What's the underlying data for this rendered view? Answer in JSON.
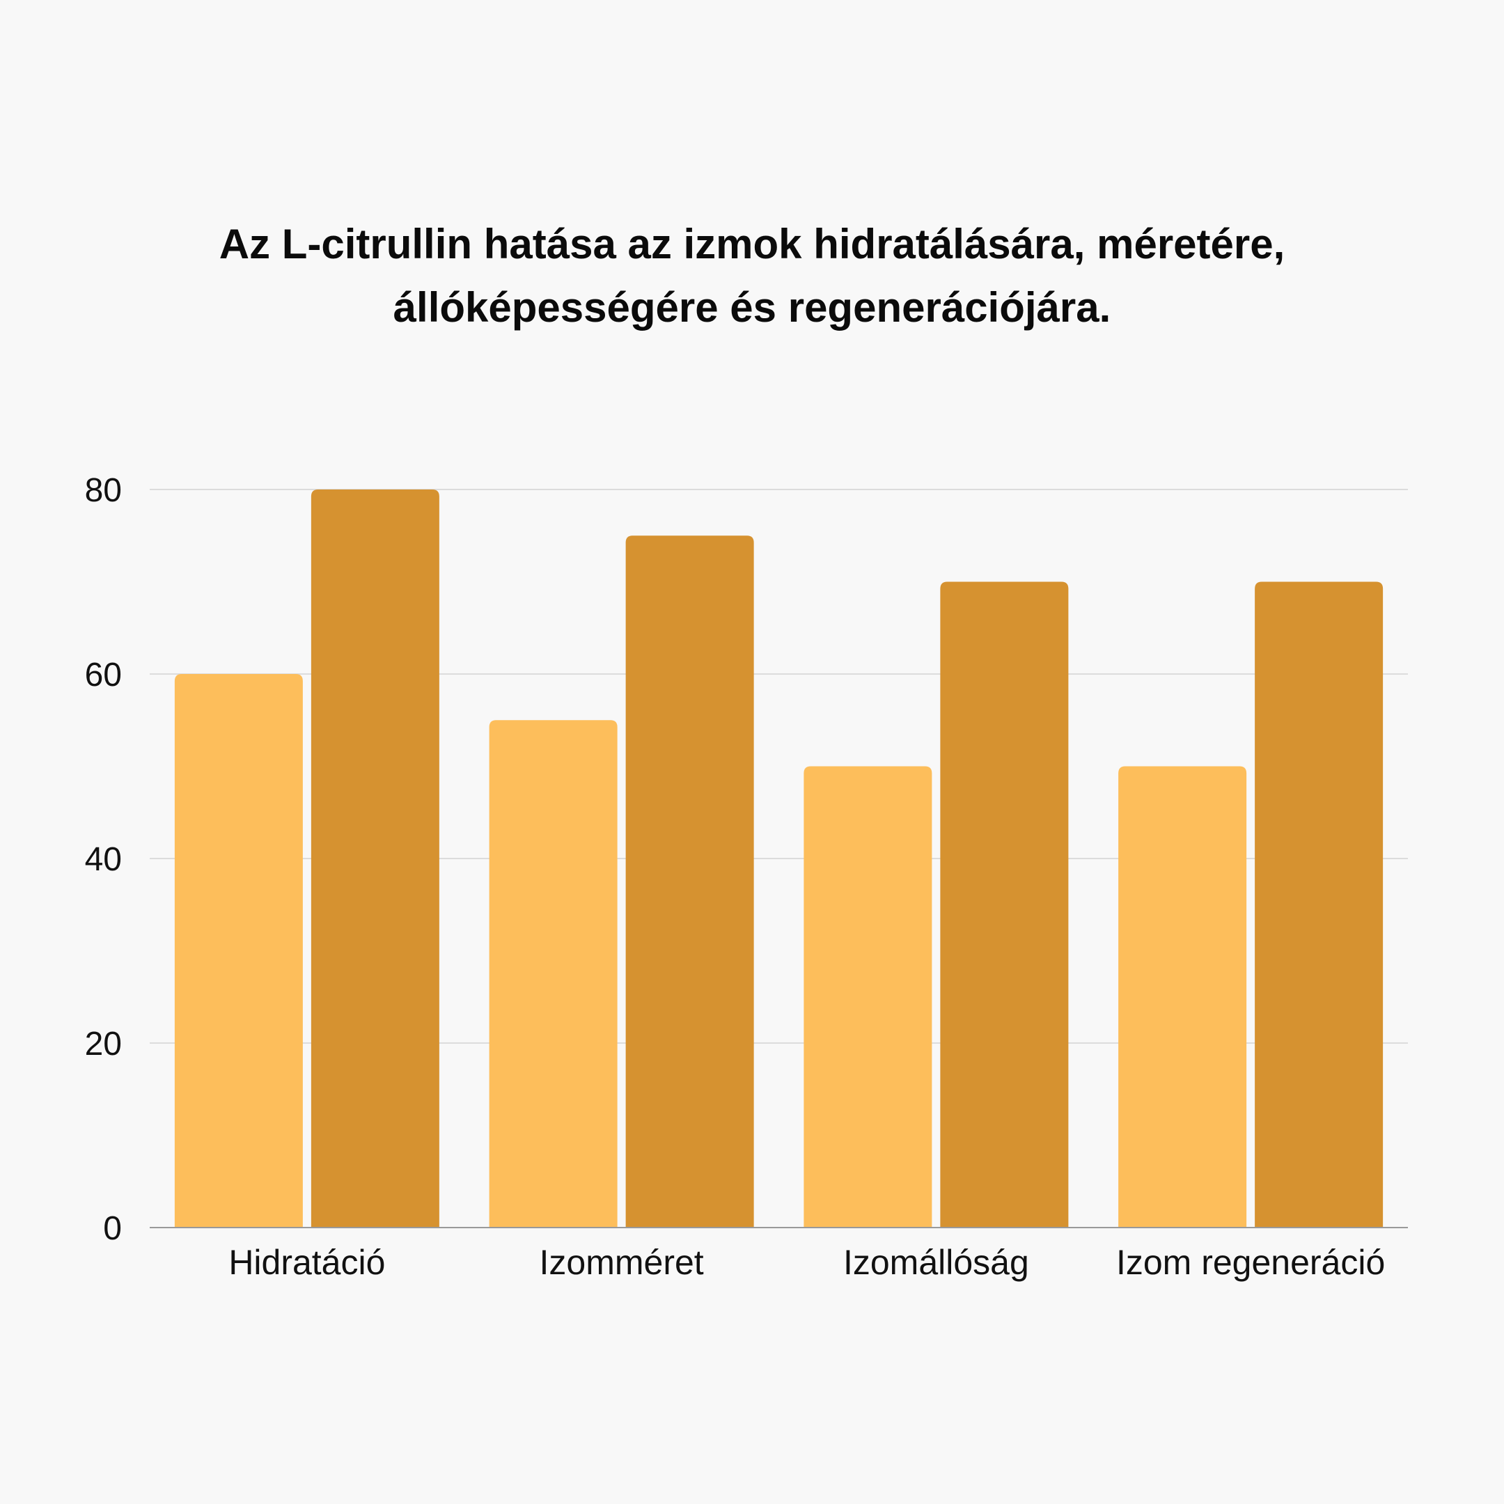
{
  "chart_data": {
    "type": "bar",
    "title": "Az L-citrullin hatása az izmok hidratálására, méretére, állóképességére és regenerációjára.",
    "categories": [
      "Hidratáció",
      "Izomméret",
      "Izomállóság",
      "Izom regeneráció"
    ],
    "series": [
      {
        "values": [
          60,
          55,
          50,
          50
        ],
        "color": "#fdbe5b"
      },
      {
        "values": [
          80,
          75,
          70,
          70
        ],
        "color": "#d69230"
      }
    ],
    "yticks": [
      "0",
      "20",
      "40",
      "60",
      "80"
    ],
    "ylim": [
      0,
      80
    ],
    "grid": true,
    "gridColor": "#dcdcdc",
    "legend": "none",
    "xlabel": "",
    "ylabel": ""
  }
}
